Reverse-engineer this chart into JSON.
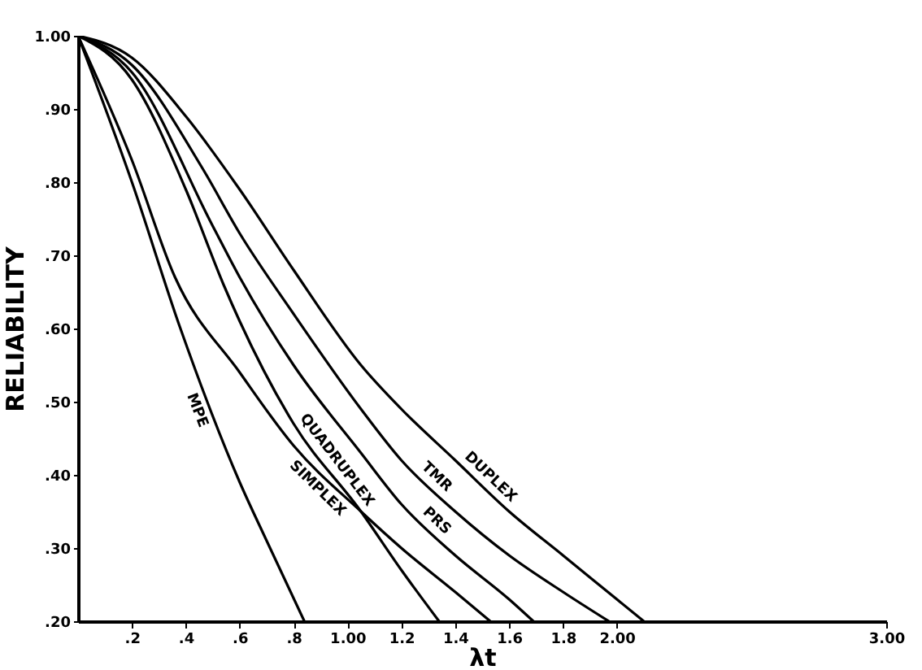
{
  "chart_data": {
    "type": "line",
    "xlabel": "λt",
    "ylabel": "RELIABILITY",
    "xlim": [
      0,
      3.0
    ],
    "ylim": [
      0.2,
      1.0
    ],
    "xticks": [
      {
        "value": 0.2,
        "label": ".2"
      },
      {
        "value": 0.4,
        "label": ".4"
      },
      {
        "value": 0.6,
        "label": ".6"
      },
      {
        "value": 0.8,
        "label": ".8"
      },
      {
        "value": 1.0,
        "label": "1.00"
      },
      1.2,
      1.4,
      1.6,
      1.8,
      {
        "value": 2.0,
        "label": "2.00"
      },
      {
        "value": 3.0,
        "label": "3.00"
      }
    ],
    "yticks": [
      {
        "value": 0.2,
        "label": ".20"
      },
      {
        "value": 0.3,
        "label": ".30"
      },
      {
        "value": 0.4,
        "label": ".40"
      },
      {
        "value": 0.5,
        "label": ".50"
      },
      {
        "value": 0.6,
        "label": ".60"
      },
      {
        "value": 0.7,
        "label": ".70"
      },
      {
        "value": 0.8,
        "label": ".80"
      },
      {
        "value": 0.9,
        "label": ".90"
      },
      {
        "value": 1.0,
        "label": "1.00"
      }
    ],
    "grid": false,
    "legend": false,
    "marker": "none",
    "line_style": "solid",
    "series": [
      {
        "name": "DUPLEX",
        "color": "#000000",
        "x": [
          0,
          0.2,
          0.4,
          0.6,
          0.8,
          1.05,
          1.2,
          1.4,
          1.6,
          1.8,
          2.0,
          2.1
        ],
        "values": [
          1.0,
          0.97,
          0.89,
          0.79,
          0.68,
          0.55,
          0.49,
          0.42,
          0.35,
          0.29,
          0.23,
          0.2
        ]
      },
      {
        "name": "TMR",
        "color": "#000000",
        "x": [
          0,
          0.2,
          0.46,
          0.6,
          0.8,
          1.05,
          1.2,
          1.4,
          1.6,
          1.8,
          1.97
        ],
        "values": [
          1.0,
          0.96,
          0.82,
          0.73,
          0.62,
          0.49,
          0.42,
          0.35,
          0.29,
          0.24,
          0.2
        ]
      },
      {
        "name": "PRS",
        "color": "#000000",
        "x": [
          0,
          0.2,
          0.5,
          0.6,
          0.8,
          1.05,
          1.2,
          1.4,
          1.6,
          1.69
        ],
        "values": [
          1.0,
          0.95,
          0.74,
          0.67,
          0.55,
          0.43,
          0.36,
          0.29,
          0.23,
          0.2
        ]
      },
      {
        "name": "QUADRUPLEX",
        "color": "#000000",
        "x": [
          0,
          0.2,
          0.4,
          0.54,
          0.6,
          0.8,
          1.05,
          1.2,
          1.34
        ],
        "values": [
          1.0,
          0.94,
          0.79,
          0.66,
          0.61,
          0.47,
          0.35,
          0.27,
          0.2
        ]
      },
      {
        "name": "SIMPLEX",
        "color": "#000000",
        "x": [
          0,
          0.2,
          0.36,
          0.6,
          0.8,
          1.05,
          1.2,
          1.4,
          1.53
        ],
        "values": [
          1.0,
          0.83,
          0.67,
          0.54,
          0.44,
          0.35,
          0.3,
          0.24,
          0.2
        ]
      },
      {
        "name": "MPE",
        "color": "#000000",
        "x": [
          0,
          0.2,
          0.38,
          0.6,
          0.7,
          0.84
        ],
        "values": [
          1.0,
          0.8,
          0.6,
          0.39,
          0.31,
          0.2
        ]
      }
    ]
  }
}
